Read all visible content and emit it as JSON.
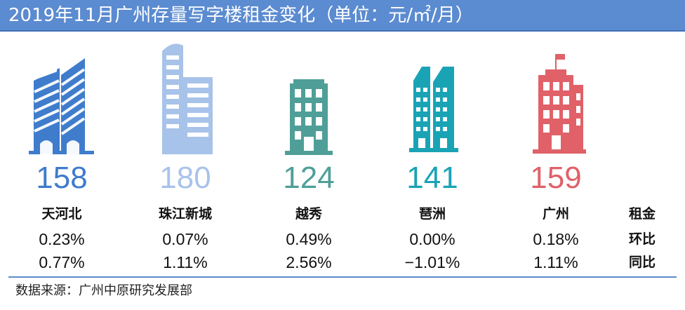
{
  "title": "2019年11月广州存量写字楼租金变化（单位：元/㎡/月）",
  "row_labels": {
    "rent": "租金",
    "mom": "环比",
    "yoy": "同比"
  },
  "source": "数据来源：广州中原研究发展部",
  "chart_data": {
    "type": "table",
    "title": "2019年11月广州存量写字楼租金变化（单位：元/㎡/月）",
    "unit": "元/㎡/月",
    "categories": [
      "天河北",
      "珠江新城",
      "越秀",
      "琶洲",
      "广州"
    ],
    "series": [
      {
        "name": "租金",
        "values": [
          "158",
          "180",
          "124",
          "141",
          "159"
        ]
      },
      {
        "name": "环比",
        "values": [
          "0.23%",
          "0.07%",
          "0.49%",
          "0.00%",
          "0.18%"
        ]
      },
      {
        "name": "同比",
        "values": [
          "0.77%",
          "1.11%",
          "2.56%",
          "−1.01%",
          "1.11%"
        ]
      }
    ],
    "colors": [
      "#3f7ccc",
      "#a8c3ea",
      "#4f9f98",
      "#1aa3b5",
      "#e06168"
    ],
    "icons": [
      "twin-tower-icon",
      "curved-tower-icon",
      "office-block-icon",
      "glass-twin-tower-icon",
      "flag-tower-icon"
    ]
  }
}
